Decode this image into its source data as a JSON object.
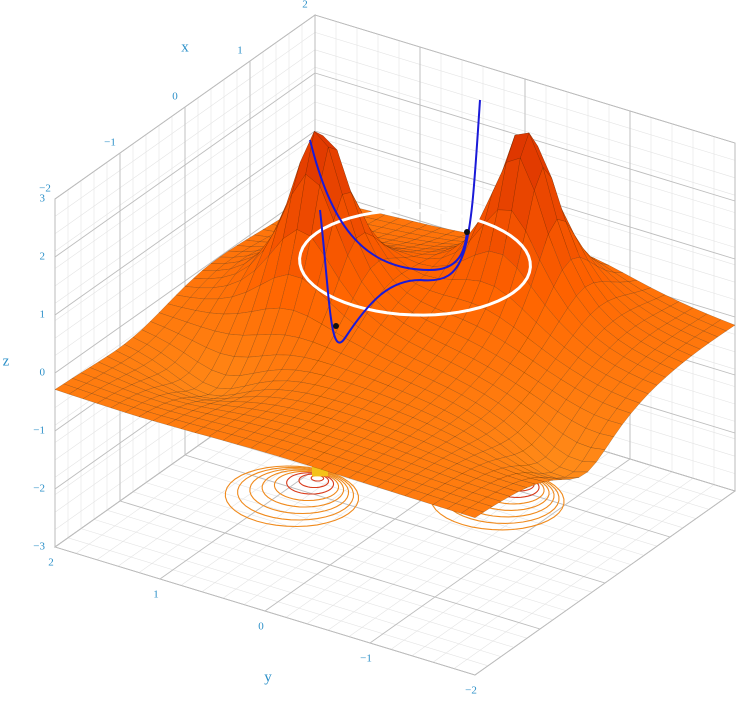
{
  "chart_data": {
    "type": "surface3d",
    "x_label": "x",
    "y_label": "y",
    "z_label": "z",
    "xlim": [
      -2,
      2
    ],
    "ylim": [
      -2,
      2
    ],
    "zlim": [
      -3,
      3
    ],
    "xticks": [
      {
        "value": -2,
        "label": "−2"
      },
      {
        "value": -1,
        "label": "−1"
      },
      0,
      1,
      2
    ],
    "yticks": [
      {
        "value": -2,
        "label": "−2"
      },
      {
        "value": -1,
        "label": "−1"
      },
      0,
      1,
      2
    ],
    "zticks": [
      {
        "value": -3,
        "label": "−3"
      },
      {
        "value": -2,
        "label": "−2"
      },
      {
        "value": -1,
        "label": "−1"
      },
      0,
      1,
      2,
      3
    ],
    "grid": true
  }
}
